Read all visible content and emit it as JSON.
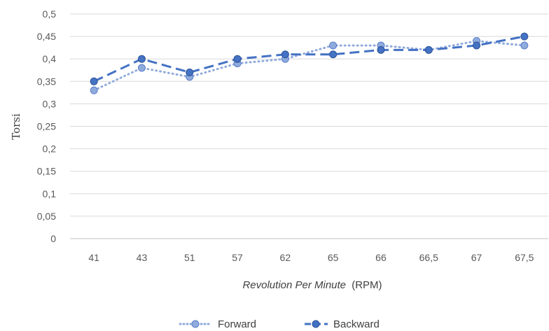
{
  "chart_data": {
    "type": "line",
    "categories": [
      "41",
      "43",
      "51",
      "57",
      "62",
      "65",
      "66",
      "66,5",
      "67",
      "67,5"
    ],
    "series": [
      {
        "name": "Forward",
        "values": [
          0.33,
          0.38,
          0.36,
          0.39,
          0.4,
          0.43,
          0.43,
          0.42,
          0.44,
          0.43
        ],
        "color": "#8FAADC",
        "style": "dotted"
      },
      {
        "name": "Backward",
        "values": [
          0.35,
          0.4,
          0.37,
          0.4,
          0.41,
          0.41,
          0.42,
          0.42,
          0.43,
          0.45
        ],
        "color": "#4472C4",
        "style": "dashed"
      }
    ],
    "ylabel": "Torsi",
    "xlabel_italic": "Revolution Per Minute",
    "xlabel_unit": "(RPM)",
    "ylim": [
      0,
      0.5
    ],
    "y_ticks": [
      "0",
      "0,05",
      "0,1",
      "0,15",
      "0,2",
      "0,25",
      "0,3",
      "0,35",
      "0,4",
      "0,45",
      "0,5"
    ],
    "grid": true,
    "legend_position": "bottom"
  }
}
